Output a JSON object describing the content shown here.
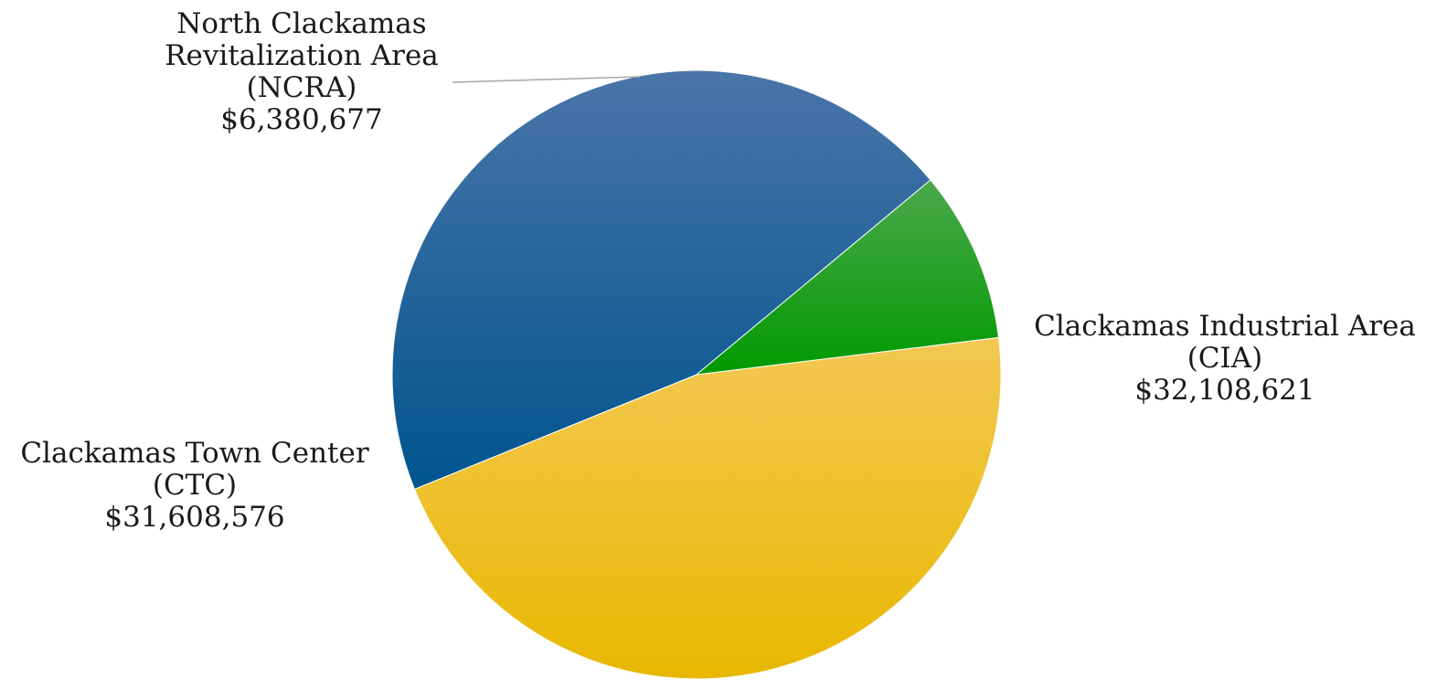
{
  "chart_data": {
    "type": "pie",
    "title": "",
    "slices": [
      {
        "label_lines": [
          "Clackamas Industrial Area",
          "(CIA)"
        ],
        "value": 32108621,
        "value_label": "$32,108,621",
        "color_top": "#f3c853",
        "color_bottom": "#e8b800"
      },
      {
        "label_lines": [
          "Clackamas Town Center",
          "(CTC)"
        ],
        "value": 31608576,
        "value_label": "$31,608,576",
        "color_top": "#4a75a8",
        "color_bottom": "#00558f"
      },
      {
        "label_lines": [
          "North Clackamas",
          "Revitalization Area",
          "(NCRA)"
        ],
        "value": 6380677,
        "value_label": "$6,380,677",
        "color_top": "#4ca84c",
        "color_bottom": "#009a00"
      }
    ],
    "start_angle_deg": 83,
    "direction": "clockwise",
    "legend": "none"
  }
}
